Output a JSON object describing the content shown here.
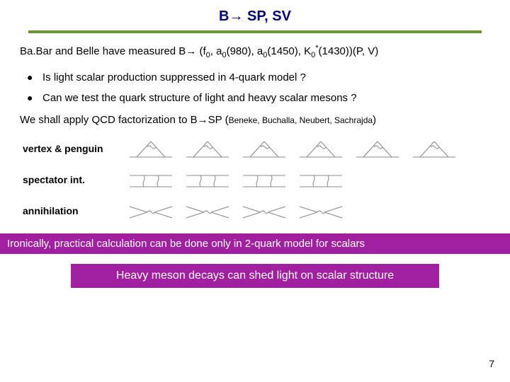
{
  "title": "B→ SP, SV",
  "intro_prefix": "Ba.Bar and Belle have measured B→ (f",
  "intro_mid1": ", a",
  "intro_mid2": "(980), a",
  "intro_mid3": "(1450), K",
  "intro_suffix": "(1430))(P, V)",
  "sub_zero": "0",
  "star": "*",
  "bullets": [
    "Is light scalar production suppressed in 4-quark model ?",
    "Can we test the quark structure of light and heavy scalar mesons ?"
  ],
  "apply_prefix": "We shall apply QCD factorization to B→SP (",
  "apply_names": "Beneke, Buchalla, Neubert, Sachrajda",
  "apply_suffix": ")",
  "row_labels": {
    "row1": "vertex & penguin",
    "row2": "spectator int.",
    "row3": "annihilation"
  },
  "irony_text": "Ironically, practical calculation can be done only in 2-quark model for scalars",
  "conclusion_text": "Heavy meson decays can shed light on scalar structure",
  "page_number": "7",
  "colors": {
    "title": "#000080",
    "underline": "#669933",
    "bar": "#a020a0",
    "bar_text": "#ffffff",
    "diagram_stroke": "#888888"
  },
  "diagram_rows": [
    {
      "key": "row1",
      "count": 6,
      "type": "vertex"
    },
    {
      "key": "row2",
      "count": 4,
      "type": "spectator"
    },
    {
      "key": "row3",
      "count": 4,
      "type": "annihilation"
    }
  ]
}
